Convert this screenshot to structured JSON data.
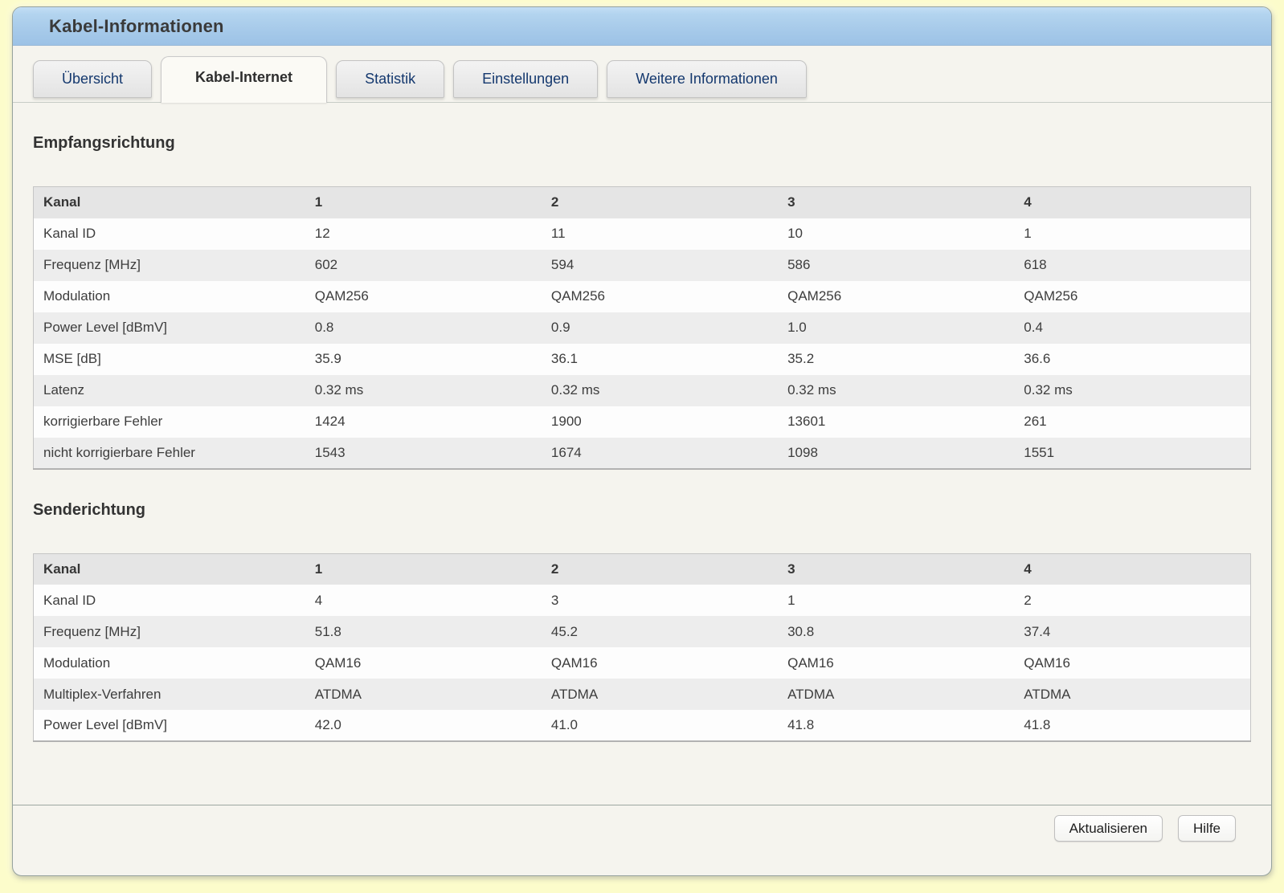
{
  "window": {
    "title": "Kabel-Informationen"
  },
  "tabs": [
    {
      "id": "uebersicht",
      "label": "Übersicht",
      "active": false
    },
    {
      "id": "kabel-internet",
      "label": "Kabel-Internet",
      "active": true
    },
    {
      "id": "statistik",
      "label": "Statistik",
      "active": false
    },
    {
      "id": "einstellungen",
      "label": "Einstellungen",
      "active": false
    },
    {
      "id": "weitere-informationen",
      "label": "Weitere Informationen",
      "active": false
    }
  ],
  "sections": [
    {
      "id": "empfangsrichtung",
      "heading": "Empfangsrichtung",
      "table": {
        "header_label": "Kanal",
        "columns": [
          "1",
          "2",
          "3",
          "4"
        ],
        "rows": [
          {
            "label": "Kanal ID",
            "values": [
              "12",
              "11",
              "10",
              "1"
            ]
          },
          {
            "label": "Frequenz [MHz]",
            "values": [
              "602",
              "594",
              "586",
              "618"
            ]
          },
          {
            "label": "Modulation",
            "values": [
              "QAM256",
              "QAM256",
              "QAM256",
              "QAM256"
            ]
          },
          {
            "label": "Power Level [dBmV]",
            "values": [
              "0.8",
              "0.9",
              "1.0",
              "0.4"
            ]
          },
          {
            "label": "MSE [dB]",
            "values": [
              "35.9",
              "36.1",
              "35.2",
              "36.6"
            ]
          },
          {
            "label": "Latenz",
            "values": [
              "0.32 ms",
              "0.32 ms",
              "0.32 ms",
              "0.32 ms"
            ]
          },
          {
            "label": "korrigierbare Fehler",
            "values": [
              "1424",
              "1900",
              "13601",
              "261"
            ]
          },
          {
            "label": "nicht korrigierbare Fehler",
            "values": [
              "1543",
              "1674",
              "1098",
              "1551"
            ]
          }
        ]
      }
    },
    {
      "id": "senderichtung",
      "heading": "Senderichtung",
      "table": {
        "header_label": "Kanal",
        "columns": [
          "1",
          "2",
          "3",
          "4"
        ],
        "rows": [
          {
            "label": "Kanal ID",
            "values": [
              "4",
              "3",
              "1",
              "2"
            ]
          },
          {
            "label": "Frequenz [MHz]",
            "values": [
              "51.8",
              "45.2",
              "30.8",
              "37.4"
            ]
          },
          {
            "label": "Modulation",
            "values": [
              "QAM16",
              "QAM16",
              "QAM16",
              "QAM16"
            ]
          },
          {
            "label": "Multiplex-Verfahren",
            "values": [
              "ATDMA",
              "ATDMA",
              "ATDMA",
              "ATDMA"
            ]
          },
          {
            "label": "Power Level [dBmV]",
            "values": [
              "42.0",
              "41.0",
              "41.8",
              "41.8"
            ]
          }
        ]
      }
    }
  ],
  "footer": {
    "buttons": [
      {
        "id": "aktualisieren",
        "label": "Aktualisieren"
      },
      {
        "id": "hilfe",
        "label": "Hilfe"
      }
    ]
  },
  "colors": {
    "outer_background": "#fcfccb",
    "panel_background": "#f5f4ee",
    "panel_border": "#96a39e",
    "header_blue_top": "#b8d7f1",
    "header_blue_bottom": "#9cc2e6",
    "title_text": "#3a3a3a",
    "tab_text_inactive": "#14386e",
    "tab_text_active": "#2e2e2e",
    "tab_inactive_bg": "#e8e8e8",
    "tab_active_bg": "#fbfaf5",
    "table_header_bg": "#e5e5e5",
    "table_row_alt_bg": "#ededed",
    "table_text": "#3d3d3d"
  }
}
